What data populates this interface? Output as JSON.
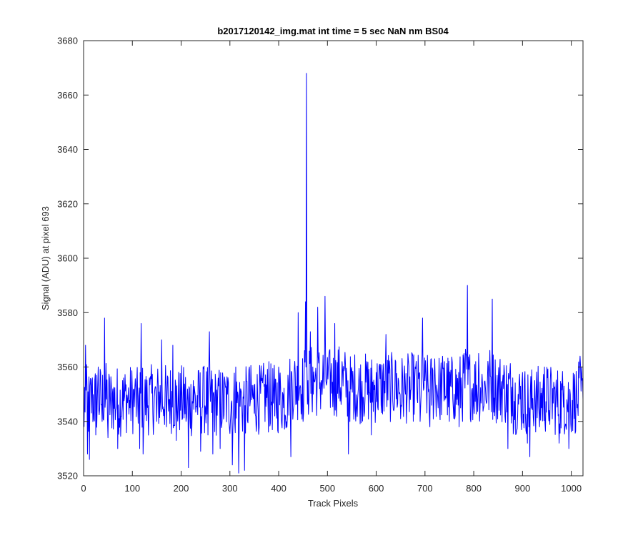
{
  "chart_data": {
    "type": "line",
    "title": "b2017120142_img.mat int time = 5 sec  NaN nm BS04",
    "xlabel": "Track Pixels",
    "ylabel": "Signal (ADU) at pixel 693",
    "xlim": [
      0,
      1024
    ],
    "ylim": [
      3520,
      3680
    ],
    "xticks": [
      0,
      100,
      200,
      300,
      400,
      500,
      600,
      700,
      800,
      900,
      1000
    ],
    "yticks": [
      3520,
      3540,
      3560,
      3580,
      3600,
      3620,
      3640,
      3660,
      3680
    ],
    "grid": false,
    "legend": "none",
    "series": [
      {
        "color": "#0000ff",
        "n_points": 1024,
        "x_start": 1,
        "x_step": 1,
        "keypoints": [
          [
            1,
            3538
          ],
          [
            4,
            3568
          ],
          [
            8,
            3528
          ],
          [
            12,
            3526
          ],
          [
            18,
            3556
          ],
          [
            25,
            3535
          ],
          [
            30,
            3560
          ],
          [
            38,
            3540
          ],
          [
            43,
            3578
          ],
          [
            50,
            3534
          ],
          [
            60,
            3552
          ],
          [
            70,
            3530
          ],
          [
            80,
            3555
          ],
          [
            95,
            3545
          ],
          [
            105,
            3552
          ],
          [
            115,
            3530
          ],
          [
            118,
            3576
          ],
          [
            122,
            3528
          ],
          [
            135,
            3556
          ],
          [
            150,
            3540
          ],
          [
            160,
            3570
          ],
          [
            170,
            3538
          ],
          [
            183,
            3568
          ],
          [
            190,
            3533
          ],
          [
            200,
            3550
          ],
          [
            210,
            3540
          ],
          [
            215,
            3523
          ],
          [
            225,
            3555
          ],
          [
            240,
            3529
          ],
          [
            245,
            3560
          ],
          [
            255,
            3535
          ],
          [
            258,
            3573
          ],
          [
            265,
            3528
          ],
          [
            275,
            3551
          ],
          [
            280,
            3530
          ],
          [
            295,
            3550
          ],
          [
            305,
            3524
          ],
          [
            312,
            3560
          ],
          [
            318,
            3521
          ],
          [
            322,
            3552
          ],
          [
            330,
            3522
          ],
          [
            340,
            3560
          ],
          [
            350,
            3543
          ],
          [
            365,
            3555
          ],
          [
            380,
            3562
          ],
          [
            392,
            3542
          ],
          [
            400,
            3560
          ],
          [
            410,
            3545
          ],
          [
            420,
            3554
          ],
          [
            425,
            3527
          ],
          [
            440,
            3580
          ],
          [
            447,
            3550
          ],
          [
            450,
            3540
          ],
          [
            455,
            3584
          ],
          [
            456,
            3560
          ],
          [
            457,
            3668
          ],
          [
            458,
            3560
          ],
          [
            460,
            3555
          ],
          [
            465,
            3573
          ],
          [
            470,
            3560
          ],
          [
            480,
            3582
          ],
          [
            487,
            3555
          ],
          [
            495,
            3586
          ],
          [
            502,
            3560
          ],
          [
            515,
            3576
          ],
          [
            530,
            3562
          ],
          [
            540,
            3555
          ],
          [
            543,
            3528
          ],
          [
            555,
            3545
          ],
          [
            570,
            3550
          ],
          [
            580,
            3560
          ],
          [
            590,
            3535
          ],
          [
            600,
            3558
          ],
          [
            610,
            3546
          ],
          [
            620,
            3572
          ],
          [
            630,
            3548
          ],
          [
            640,
            3562
          ],
          [
            650,
            3541
          ],
          [
            660,
            3550
          ],
          [
            670,
            3548
          ],
          [
            680,
            3560
          ],
          [
            690,
            3540
          ],
          [
            695,
            3578
          ],
          [
            700,
            3555
          ],
          [
            710,
            3538
          ],
          [
            720,
            3563
          ],
          [
            730,
            3544
          ],
          [
            740,
            3562
          ],
          [
            750,
            3540
          ],
          [
            760,
            3550
          ],
          [
            770,
            3538
          ],
          [
            780,
            3565
          ],
          [
            787,
            3590
          ],
          [
            795,
            3548
          ],
          [
            810,
            3565
          ],
          [
            820,
            3545
          ],
          [
            830,
            3560
          ],
          [
            838,
            3585
          ],
          [
            845,
            3548
          ],
          [
            860,
            3557
          ],
          [
            870,
            3530
          ],
          [
            880,
            3556
          ],
          [
            890,
            3542
          ],
          [
            900,
            3558
          ],
          [
            910,
            3532
          ],
          [
            915,
            3527
          ],
          [
            925,
            3555
          ],
          [
            935,
            3538
          ],
          [
            945,
            3560
          ],
          [
            955,
            3544
          ],
          [
            965,
            3552
          ],
          [
            975,
            3532
          ],
          [
            985,
            3553
          ],
          [
            995,
            3530
          ],
          [
            1005,
            3555
          ],
          [
            1012,
            3545
          ],
          [
            1018,
            3564
          ],
          [
            1024,
            3548
          ]
        ]
      }
    ]
  }
}
